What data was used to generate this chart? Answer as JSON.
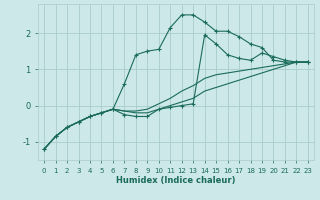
{
  "xlabel": "Humidex (Indice chaleur)",
  "bg_color": "#cce8e8",
  "grid_color": "#aacccc",
  "line_color": "#1a6b5a",
  "xlim": [
    -0.5,
    23.5
  ],
  "ylim": [
    -1.5,
    2.8
  ],
  "yticks": [
    -1,
    0,
    1,
    2
  ],
  "xticks": [
    0,
    1,
    2,
    3,
    4,
    5,
    6,
    7,
    8,
    9,
    10,
    11,
    12,
    13,
    14,
    15,
    16,
    17,
    18,
    19,
    20,
    21,
    22,
    23
  ],
  "lines": [
    {
      "x": [
        0,
        1,
        2,
        3,
        4,
        5,
        6,
        7,
        8,
        9,
        10,
        11,
        12,
        13,
        14,
        15,
        16,
        17,
        18,
        19,
        20,
        21,
        22,
        23
      ],
      "y": [
        -1.2,
        -0.85,
        -0.6,
        -0.45,
        -0.3,
        -0.2,
        -0.1,
        0.6,
        1.4,
        1.5,
        1.55,
        2.15,
        2.5,
        2.5,
        2.3,
        2.05,
        2.05,
        1.9,
        1.7,
        1.6,
        1.25,
        1.2,
        1.2,
        1.2
      ],
      "marker": true
    },
    {
      "x": [
        0,
        1,
        2,
        3,
        4,
        5,
        6,
        7,
        8,
        9,
        10,
        11,
        12,
        13,
        14,
        15,
        16,
        17,
        18,
        19,
        20,
        21,
        22,
        23
      ],
      "y": [
        -1.2,
        -0.85,
        -0.6,
        -0.45,
        -0.3,
        -0.2,
        -0.1,
        -0.15,
        -0.2,
        -0.2,
        -0.1,
        0.0,
        0.1,
        0.2,
        0.4,
        0.5,
        0.6,
        0.7,
        0.8,
        0.9,
        1.0,
        1.1,
        1.2,
        1.2
      ],
      "marker": false
    },
    {
      "x": [
        0,
        1,
        2,
        3,
        4,
        5,
        6,
        7,
        8,
        9,
        10,
        11,
        12,
        13,
        14,
        15,
        16,
        17,
        18,
        19,
        20,
        21,
        22,
        23
      ],
      "y": [
        -1.2,
        -0.85,
        -0.6,
        -0.45,
        -0.3,
        -0.2,
        -0.1,
        -0.15,
        -0.15,
        -0.1,
        0.05,
        0.2,
        0.4,
        0.55,
        0.75,
        0.85,
        0.9,
        0.95,
        1.0,
        1.05,
        1.1,
        1.15,
        1.2,
        1.2
      ],
      "marker": false
    },
    {
      "x": [
        0,
        1,
        2,
        3,
        4,
        5,
        6,
        7,
        8,
        9,
        10,
        11,
        12,
        13,
        14,
        15,
        16,
        17,
        18,
        19,
        20,
        21,
        22,
        23
      ],
      "y": [
        -1.2,
        -0.85,
        -0.6,
        -0.45,
        -0.3,
        -0.2,
        -0.1,
        -0.25,
        -0.3,
        -0.3,
        -0.1,
        -0.05,
        0.0,
        0.05,
        1.95,
        1.7,
        1.4,
        1.3,
        1.25,
        1.45,
        1.35,
        1.25,
        1.2,
        1.2
      ],
      "marker": true
    }
  ]
}
